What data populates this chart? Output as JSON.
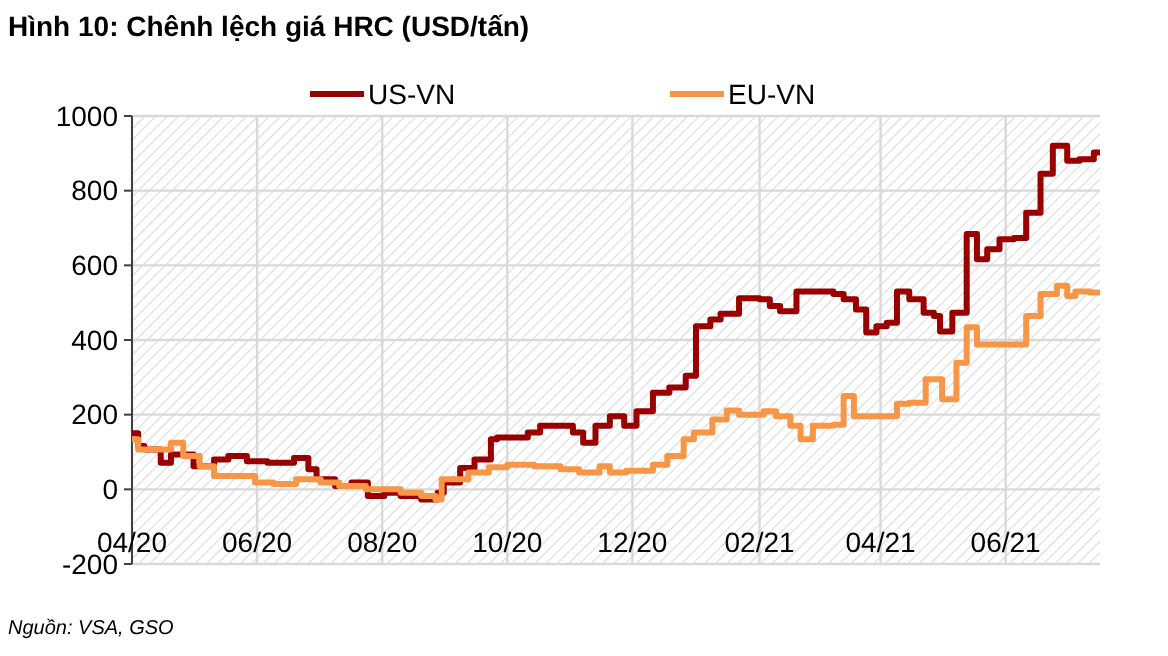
{
  "chart_data": {
    "type": "step",
    "title": "Hình 10: Chênh lệch giá HRC (USD/tấn)",
    "annotations": [
      "Nguồn: VSA, GSO"
    ],
    "xlim": [
      "2020-04-01",
      "2021-07-17"
    ],
    "xticks": [
      {
        "value": "2020-04-01",
        "label": "04/20"
      },
      {
        "value": "2020-06-01",
        "label": "06/20"
      },
      {
        "value": "2020-08-01",
        "label": "08/20"
      },
      {
        "value": "2020-10-01",
        "label": "10/20"
      },
      {
        "value": "2020-12-01",
        "label": "12/20"
      },
      {
        "value": "2021-02-01",
        "label": "02/21"
      },
      {
        "value": "2021-04-01",
        "label": "04/21"
      },
      {
        "value": "2021-06-01",
        "label": "06/21"
      }
    ],
    "ylim": [
      -200,
      1000
    ],
    "yticks": [
      -200,
      0,
      200,
      400,
      600,
      800,
      1000
    ],
    "grid": true,
    "legend": "top",
    "line_style": "solid",
    "marker": "none",
    "series": [
      {
        "name": "US-VN",
        "color": "#990000",
        "x": [
          "2020-04-01",
          "2020-04-04",
          "2020-04-07",
          "2020-04-15",
          "2020-04-20",
          "2020-05-01",
          "2020-05-11",
          "2020-05-18",
          "2020-05-27",
          "2020-06-06",
          "2020-06-19",
          "2020-06-26",
          "2020-06-30",
          "2020-07-09",
          "2020-07-17",
          "2020-07-25",
          "2020-08-02",
          "2020-08-10",
          "2020-08-20",
          "2020-08-28",
          "2020-08-31",
          "2020-09-08",
          "2020-09-15",
          "2020-09-23",
          "2020-09-26",
          "2020-10-11",
          "2020-10-17",
          "2020-11-02",
          "2020-11-07",
          "2020-11-13",
          "2020-11-20",
          "2020-11-27",
          "2020-12-03",
          "2020-12-11",
          "2020-12-19",
          "2020-12-27",
          "2021-01-01",
          "2021-01-08",
          "2021-01-13",
          "2021-01-22",
          "2021-02-01",
          "2021-02-06",
          "2021-02-11",
          "2021-02-19",
          "2021-03-09",
          "2021-03-14",
          "2021-03-20",
          "2021-03-25",
          "2021-03-30",
          "2021-04-04",
          "2021-04-09",
          "2021-04-15",
          "2021-04-22",
          "2021-04-27",
          "2021-04-30",
          "2021-05-06",
          "2021-05-13",
          "2021-05-18",
          "2021-05-23",
          "2021-05-29",
          "2021-06-05",
          "2021-06-11",
          "2021-06-18",
          "2021-06-24",
          "2021-07-01",
          "2021-07-07",
          "2021-07-14",
          "2021-07-17"
        ],
        "values": [
          150,
          116,
          107,
          71,
          93,
          62,
          80,
          89,
          75,
          71,
          84,
          54,
          27,
          9,
          18,
          -18,
          -9,
          -18,
          -27,
          -9,
          18,
          57,
          80,
          134,
          139,
          152,
          170,
          152,
          125,
          170,
          196,
          170,
          209,
          259,
          273,
          304,
          437,
          455,
          470,
          512,
          509,
          491,
          477,
          530,
          523,
          509,
          482,
          420,
          437,
          446,
          530,
          509,
          473,
          464,
          423,
          473,
          684,
          616,
          643,
          670,
          673,
          741,
          845,
          920,
          880,
          884,
          902,
          902
        ]
      },
      {
        "name": "EU-VN",
        "color": "#f79646",
        "x": [
          "2020-04-01",
          "2020-04-04",
          "2020-04-20",
          "2020-04-26",
          "2020-05-04",
          "2020-05-11",
          "2020-05-31",
          "2020-06-09",
          "2020-06-20",
          "2020-07-02",
          "2020-07-11",
          "2020-07-24",
          "2020-08-10",
          "2020-08-20",
          "2020-08-27",
          "2020-08-30",
          "2020-09-12",
          "2020-09-22",
          "2020-10-01",
          "2020-10-14",
          "2020-10-27",
          "2020-11-05",
          "2020-11-15",
          "2020-11-20",
          "2020-11-28",
          "2020-12-11",
          "2020-12-18",
          "2020-12-26",
          "2020-12-31",
          "2021-01-09",
          "2021-01-16",
          "2021-01-22",
          "2021-02-03",
          "2021-02-09",
          "2021-02-16",
          "2021-02-21",
          "2021-02-27",
          "2021-03-09",
          "2021-03-14",
          "2021-03-19",
          "2021-04-09",
          "2021-04-15",
          "2021-04-23",
          "2021-05-01",
          "2021-05-08",
          "2021-05-13",
          "2021-05-18",
          "2021-06-11",
          "2021-06-18",
          "2021-06-26",
          "2021-07-01",
          "2021-07-05",
          "2021-07-12",
          "2021-07-17"
        ],
        "values": [
          134,
          107,
          125,
          89,
          62,
          36,
          18,
          14,
          27,
          18,
          9,
          0,
          -9,
          -18,
          -27,
          27,
          45,
          59,
          66,
          62,
          54,
          45,
          62,
          45,
          50,
          66,
          89,
          134,
          152,
          187,
          211,
          200,
          209,
          196,
          170,
          134,
          170,
          173,
          250,
          196,
          229,
          232,
          295,
          241,
          339,
          434,
          388,
          464,
          523,
          545,
          518,
          530,
          527,
          527
        ]
      }
    ]
  }
}
